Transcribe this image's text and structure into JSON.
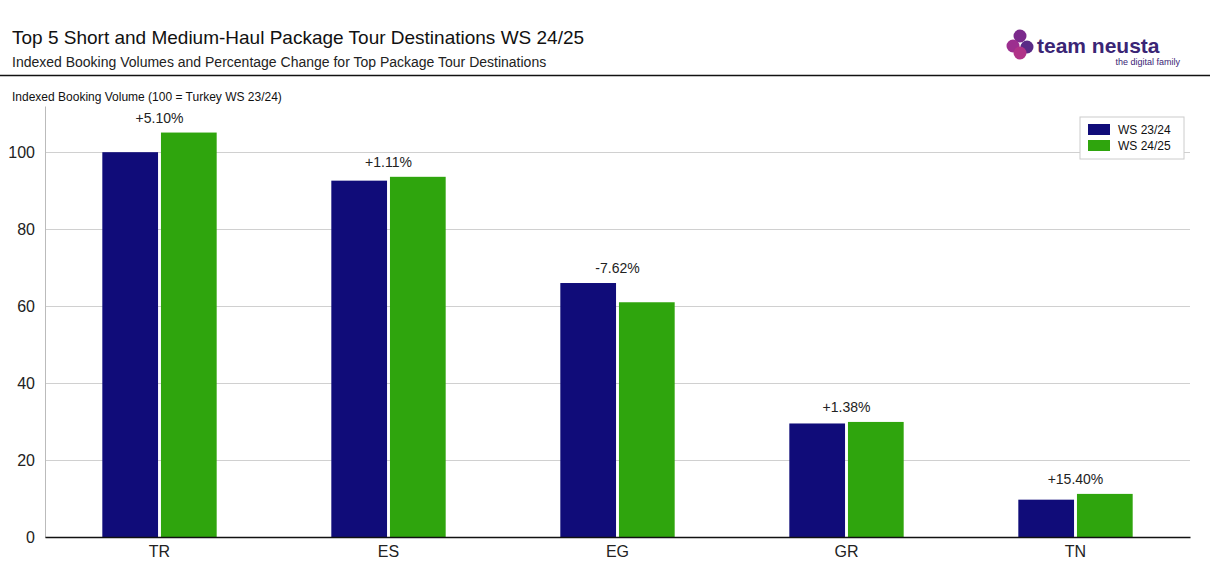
{
  "chart_data": {
    "type": "bar",
    "title": "Top 5 Short and Medium-Haul Package Tour Destinations WS 24/25",
    "subtitle": "Indexed Booking Volumes and Percentage Change for Top Package Tour Destinations",
    "y_label": "Indexed Booking Volume (100 = Turkey WS 23/24)",
    "annotations": [
      {
        "text": "team neusta"
      },
      {
        "text": "the digital family"
      }
    ],
    "categories": [
      "TR",
      "ES",
      "EG",
      "GR",
      "TN"
    ],
    "series": [
      {
        "name": "WS 23/24",
        "color": "#100c79",
        "values": [
          100,
          92.6,
          66.0,
          29.5,
          9.7
        ]
      },
      {
        "name": "WS 24/25",
        "color": "#2fa50d",
        "values": [
          105.1,
          93.6,
          61.0,
          29.9,
          11.2
        ]
      }
    ],
    "changes": {
      "values": [
        5.1,
        1.11,
        -7.62,
        1.38,
        15.4
      ],
      "value_labels": [
        "+5.10%",
        "+1.11%",
        "-7.62%",
        "+1.38%",
        "+15.40%"
      ]
    },
    "ylim": [
      0,
      112
    ],
    "yticks": [
      0,
      20,
      40,
      60,
      80,
      100
    ],
    "grid": true,
    "legend": "top-right"
  }
}
